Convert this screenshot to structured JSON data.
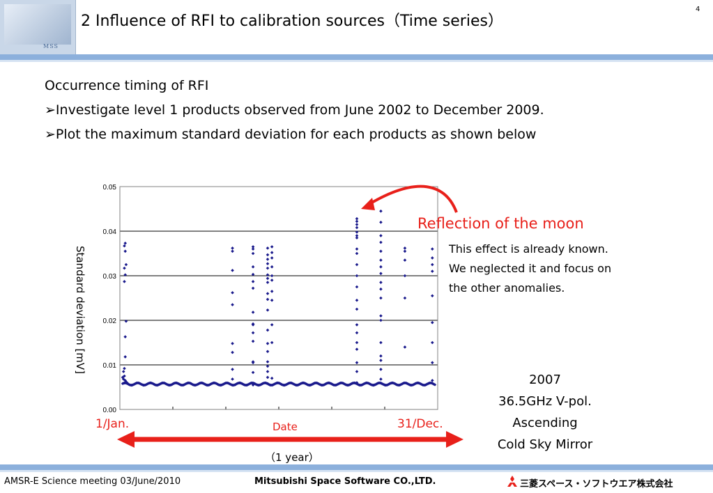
{
  "header": {
    "logo_text": "MSS",
    "title": "2 Influence of RFI to calibration sources（Time  series）",
    "page_number": "4"
  },
  "intro": {
    "heading": "Occurrence timing of RFI",
    "bullets": [
      "➢Investigate level 1 products observed from June 2002 to December 2009.",
      "➢Plot the maximum standard deviation for each products as shown below"
    ]
  },
  "chart_data": {
    "type": "scatter",
    "ylabel": "Standard deviation [mV]",
    "xlabel": "Date",
    "ylim": [
      0,
      0.05
    ],
    "y_ticks": [
      "0.05",
      "0.04",
      "0.03",
      "0.02",
      "0.01",
      "0.00"
    ],
    "x_range": [
      "1/Jan.",
      "31/Dec."
    ],
    "grid": true,
    "marker_color": "#1a1a8c",
    "baseline": {
      "value": 0.0057,
      "from_day": 1,
      "to_day": 365
    },
    "series": [
      {
        "points": [
          [
            1,
            0.0072
          ],
          [
            2,
            0.0068
          ],
          [
            3,
            0.0075
          ],
          [
            4,
            0.0065
          ],
          [
            5,
            0.0062
          ],
          [
            6,
            0.006
          ],
          [
            7,
            0.0058
          ],
          [
            2,
            0.0085
          ],
          [
            3,
            0.0092
          ],
          [
            4,
            0.0118
          ],
          [
            4,
            0.0163
          ],
          [
            5,
            0.0198
          ],
          [
            3,
            0.0287
          ],
          [
            4,
            0.0302
          ],
          [
            3,
            0.0317
          ],
          [
            5,
            0.0325
          ],
          [
            4,
            0.0355
          ],
          [
            3,
            0.0367
          ],
          [
            4,
            0.0373
          ],
          [
            129,
            0.0068
          ],
          [
            129,
            0.009
          ],
          [
            129,
            0.0128
          ],
          [
            129,
            0.0148
          ],
          [
            129,
            0.0235
          ],
          [
            129,
            0.0262
          ],
          [
            129,
            0.0312
          ],
          [
            129,
            0.0355
          ],
          [
            129,
            0.0362
          ],
          [
            153,
            0.0055
          ],
          [
            153,
            0.0083
          ],
          [
            153,
            0.0105
          ],
          [
            153,
            0.0107
          ],
          [
            153,
            0.0153
          ],
          [
            153,
            0.0172
          ],
          [
            153,
            0.019
          ],
          [
            153,
            0.0192
          ],
          [
            153,
            0.0218
          ],
          [
            153,
            0.0272
          ],
          [
            153,
            0.0287
          ],
          [
            153,
            0.0303
          ],
          [
            153,
            0.032
          ],
          [
            153,
            0.035
          ],
          [
            153,
            0.036
          ],
          [
            153,
            0.0365
          ],
          [
            170,
            0.0058
          ],
          [
            170,
            0.0072
          ],
          [
            170,
            0.0085
          ],
          [
            170,
            0.0097
          ],
          [
            170,
            0.0107
          ],
          [
            170,
            0.013
          ],
          [
            170,
            0.0148
          ],
          [
            170,
            0.0178
          ],
          [
            170,
            0.0223
          ],
          [
            170,
            0.0247
          ],
          [
            170,
            0.026
          ],
          [
            170,
            0.0285
          ],
          [
            170,
            0.0294
          ],
          [
            170,
            0.0302
          ],
          [
            170,
            0.0317
          ],
          [
            170,
            0.0327
          ],
          [
            170,
            0.0337
          ],
          [
            170,
            0.0347
          ],
          [
            170,
            0.0362
          ],
          [
            175,
            0.007
          ],
          [
            175,
            0.015
          ],
          [
            175,
            0.019
          ],
          [
            175,
            0.0245
          ],
          [
            175,
            0.0265
          ],
          [
            175,
            0.029
          ],
          [
            175,
            0.03
          ],
          [
            175,
            0.032
          ],
          [
            175,
            0.034
          ],
          [
            175,
            0.0352
          ],
          [
            175,
            0.0365
          ],
          [
            274,
            0.006
          ],
          [
            274,
            0.0085
          ],
          [
            274,
            0.0105
          ],
          [
            274,
            0.0135
          ],
          [
            274,
            0.015
          ],
          [
            274,
            0.0172
          ],
          [
            274,
            0.019
          ],
          [
            274,
            0.0225
          ],
          [
            274,
            0.0245
          ],
          [
            274,
            0.0275
          ],
          [
            274,
            0.03
          ],
          [
            274,
            0.0325
          ],
          [
            274,
            0.035
          ],
          [
            274,
            0.036
          ],
          [
            274,
            0.0385
          ],
          [
            274,
            0.039
          ],
          [
            274,
            0.0398
          ],
          [
            274,
            0.0408
          ],
          [
            274,
            0.0415
          ],
          [
            274,
            0.0422
          ],
          [
            274,
            0.0428
          ],
          [
            302,
            0.0068
          ],
          [
            302,
            0.009
          ],
          [
            302,
            0.011
          ],
          [
            302,
            0.012
          ],
          [
            302,
            0.015
          ],
          [
            302,
            0.02
          ],
          [
            302,
            0.021
          ],
          [
            302,
            0.025
          ],
          [
            302,
            0.027
          ],
          [
            302,
            0.0285
          ],
          [
            302,
            0.0305
          ],
          [
            302,
            0.032
          ],
          [
            302,
            0.0335
          ],
          [
            302,
            0.0355
          ],
          [
            302,
            0.0375
          ],
          [
            302,
            0.039
          ],
          [
            302,
            0.042
          ],
          [
            302,
            0.0445
          ],
          [
            330,
            0.014
          ],
          [
            330,
            0.025
          ],
          [
            330,
            0.03
          ],
          [
            330,
            0.0335
          ],
          [
            330,
            0.0355
          ],
          [
            330,
            0.0362
          ],
          [
            362,
            0.0065
          ],
          [
            362,
            0.0105
          ],
          [
            362,
            0.015
          ],
          [
            362,
            0.0195
          ],
          [
            362,
            0.0255
          ],
          [
            362,
            0.031
          ],
          [
            362,
            0.0325
          ],
          [
            362,
            0.034
          ],
          [
            362,
            0.036
          ]
        ]
      }
    ]
  },
  "annotations": {
    "moon_label": "Reflection of the moon",
    "note_lines": [
      "This effect is already known.",
      "We neglected it and focus on",
      "the other anomalies."
    ],
    "info_lines": [
      "2007",
      "36.5GHz V-pol.",
      "Ascending",
      "Cold Sky Mirror"
    ],
    "year_span": "（1 year）"
  },
  "footer": {
    "left": "AMSR-E Science meeting  03/June/2010",
    "center": "Mitsubishi Space Software CO.,LTD.",
    "logo": "三菱スペース・ソフトウエア株式会社"
  }
}
